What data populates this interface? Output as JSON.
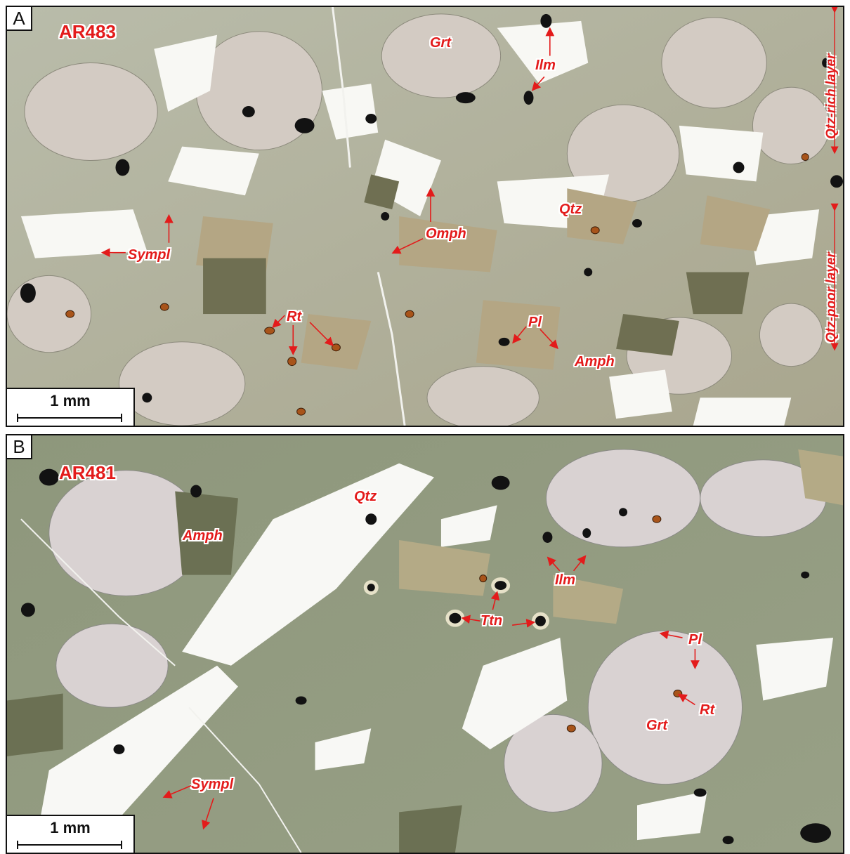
{
  "panel_a": {
    "letter": "A",
    "sample": "AR483",
    "labels": {
      "grt": "Grt",
      "ilm": "Ilm",
      "qtz": "Qtz",
      "omph": "Omph",
      "sympl": "Sympl",
      "rt": "Rt",
      "pl": "Pl",
      "amph": "Amph"
    },
    "layers": {
      "rich": "Qtz-rich layer",
      "poor": "Qtz-poor layer"
    },
    "scale": "1 mm"
  },
  "panel_b": {
    "letter": "B",
    "sample": "AR481",
    "labels": {
      "qtz": "Qtz",
      "amph": "Amph",
      "ilm": "Ilm",
      "ttn": "Ttn",
      "pl": "Pl",
      "rt": "Rt",
      "grt": "Grt",
      "sympl": "Sympl"
    },
    "scale": "1 mm"
  },
  "colors": {
    "label": "#e31b1b",
    "border": "#111111"
  }
}
